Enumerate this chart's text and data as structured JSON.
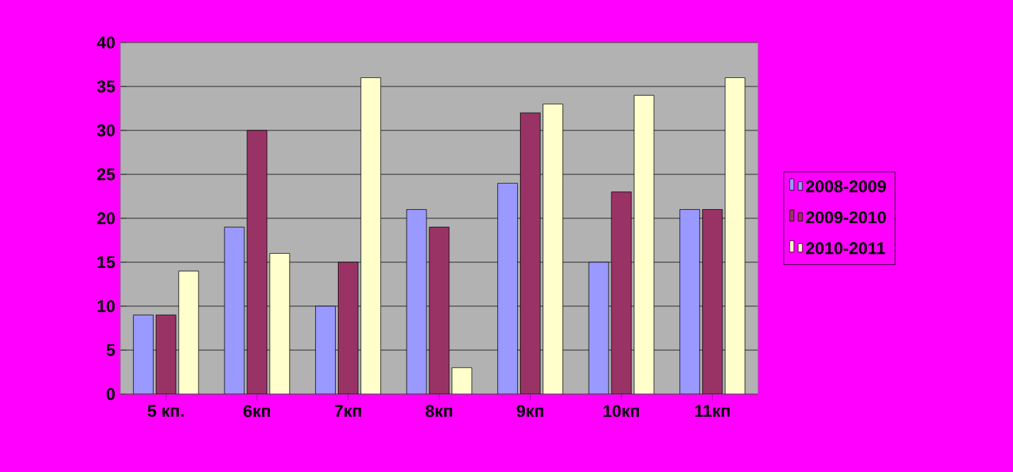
{
  "chart_data": {
    "type": "bar",
    "categories": [
      "5 кп.",
      "6кп",
      "7кп",
      "8кп",
      "9кп",
      "10кп",
      "11кп"
    ],
    "series": [
      {
        "name": "2008-2009",
        "color": "#9999ff",
        "values": [
          9,
          19,
          10,
          21,
          24,
          15,
          21
        ]
      },
      {
        "name": "2009-2010",
        "color": "#993366",
        "values": [
          9,
          30,
          15,
          19,
          32,
          23,
          21
        ]
      },
      {
        "name": "2010-2011",
        "color": "#ffffcc",
        "values": [
          14,
          16,
          36,
          3,
          33,
          34,
          36
        ]
      }
    ],
    "ylim": [
      0,
      40
    ],
    "yticks": [
      0,
      5,
      10,
      15,
      20,
      25,
      30,
      35,
      40
    ],
    "grid": "y",
    "legend": "right"
  }
}
